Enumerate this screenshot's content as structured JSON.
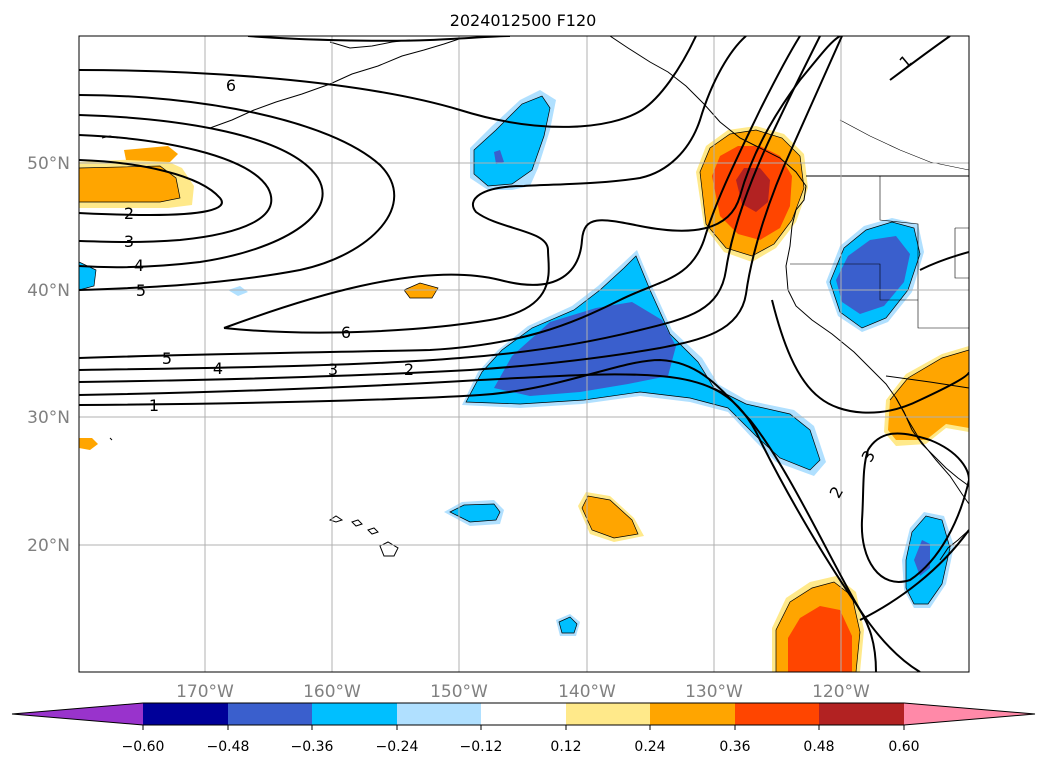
{
  "title": "2024012500 F120",
  "lat_labels": [
    "50°N",
    "40°N",
    "30°N",
    "20°N"
  ],
  "lon_labels": [
    "170°W",
    "160°W",
    "150°W",
    "140°W",
    "130°W",
    "120°W"
  ],
  "colorbar": {
    "tick_labels": [
      "−0.60",
      "−0.48",
      "−0.36",
      "−0.24",
      "−0.12",
      "0.12",
      "0.24",
      "0.36",
      "0.48",
      "0.60"
    ],
    "colors": [
      "#9933cc",
      "#000099",
      "#3a5fcd",
      "#00bfff",
      "#b0e0ff",
      "#ffffff",
      "#ffe98a",
      "#ffa500",
      "#ff4500",
      "#b22222",
      "#ff89a8"
    ]
  },
  "contour_labels": [
    "6",
    "2",
    "3",
    "4",
    "5",
    "6",
    "5",
    "4",
    "3",
    "2",
    "1",
    "1",
    "2",
    "3"
  ],
  "colors": {
    "blue_dark": "#3a5fcd",
    "blue_mid": "#00bfff",
    "blue_light": "#b0e0ff",
    "yellow": "#ffe98a",
    "orange": "#ffa500",
    "red_orange": "#ff4500",
    "dark_red": "#b22222",
    "grid": "#b0b0b0"
  }
}
